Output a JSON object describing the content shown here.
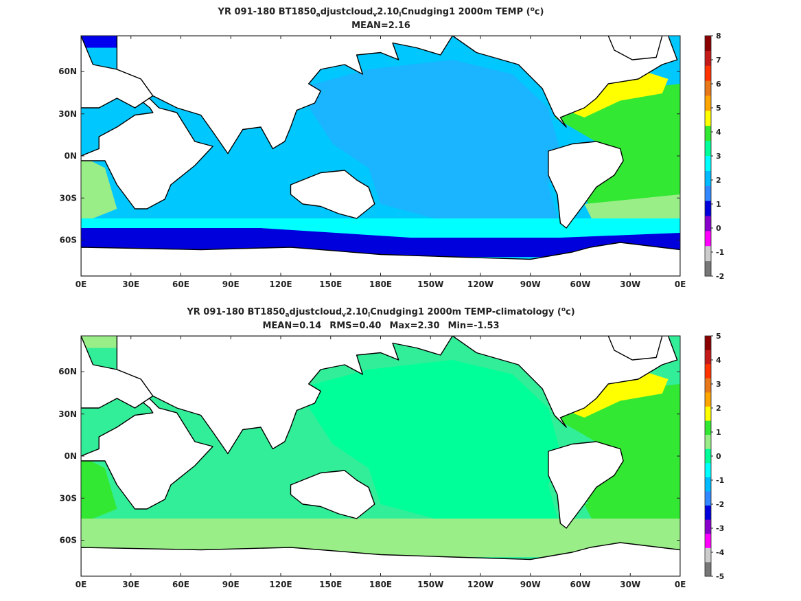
{
  "chart_data": [
    {
      "type": "heatmap",
      "title_parts": [
        "YR 091-180 BT1850",
        "a",
        "djustcloud",
        "v",
        "2.10",
        "l",
        "Cnudging1 2000m TEMP (",
        "o",
        "c)"
      ],
      "subtitle": "MEAN=2.16",
      "x_ticks": [
        "0E",
        "30E",
        "60E",
        "90E",
        "120E",
        "150E",
        "180E",
        "150W",
        "120W",
        "90W",
        "60W",
        "30W",
        "0E"
      ],
      "y_ticks": [
        "60N",
        "30N",
        "0N",
        "30S",
        "60S"
      ],
      "colorbar": {
        "labels": [
          "8",
          "7",
          "6",
          "5",
          "4",
          "3",
          "2",
          "1",
          "0",
          "-1",
          "-2"
        ],
        "colors": [
          "#8b0000",
          "#c41a1a",
          "#ff3300",
          "#e8781a",
          "#ffa500",
          "#ffff00",
          "#33e833",
          "#00ff99",
          "#00ffff",
          "#00bbff",
          "#3388ff",
          "#0000dd",
          "#8800cc",
          "#ff00ff",
          "#cccccc",
          "#777777"
        ]
      },
      "fields": {
        "ocean": "#00c8ff",
        "pacific": "#1ab4ff",
        "atlantic": "#33e833",
        "north_atlantic": "#ffff00",
        "south_atlantic": "#99ee88",
        "southern_ocean": "#00ffff",
        "antarctic": "#0000dd",
        "arctic": "#0000ee"
      }
    },
    {
      "type": "heatmap",
      "title_parts": [
        "YR 091-180 BT1850",
        "a",
        "djustcloud",
        "v",
        "2.10",
        "l",
        "Cnudging1 2000m TEMP-climatology (",
        "o",
        "c)"
      ],
      "stats": [
        "MEAN=0.14",
        "RMS=0.40",
        "Max=2.30",
        "Min=-1.53"
      ],
      "x_ticks": [
        "0E",
        "30E",
        "60E",
        "90E",
        "120E",
        "150E",
        "180E",
        "150W",
        "120W",
        "90W",
        "60W",
        "30W",
        "0E"
      ],
      "y_ticks": [
        "60N",
        "30N",
        "0N",
        "30S",
        "60S"
      ],
      "colorbar": {
        "labels": [
          "5",
          "4",
          "3",
          "2",
          "1",
          "0",
          "-1",
          "-2",
          "-3",
          "-4",
          "-5"
        ],
        "colors": [
          "#8b0000",
          "#c41a1a",
          "#ff3300",
          "#e8781a",
          "#ffa500",
          "#ffff00",
          "#33e833",
          "#99ee88",
          "#00ff99",
          "#00ffff",
          "#00bbff",
          "#3388ff",
          "#0000dd",
          "#8800cc",
          "#ff00ff",
          "#cccccc",
          "#777777"
        ]
      },
      "fields": {
        "ocean": "#33ee99",
        "pacific": "#00ff99",
        "atlantic": "#33e833",
        "north_atlantic": "#ffff00",
        "south_atlantic": "#33e833",
        "southern_ocean": "#99ee88",
        "antarctic": "#99ee88",
        "arctic": "#99ee88"
      }
    }
  ]
}
